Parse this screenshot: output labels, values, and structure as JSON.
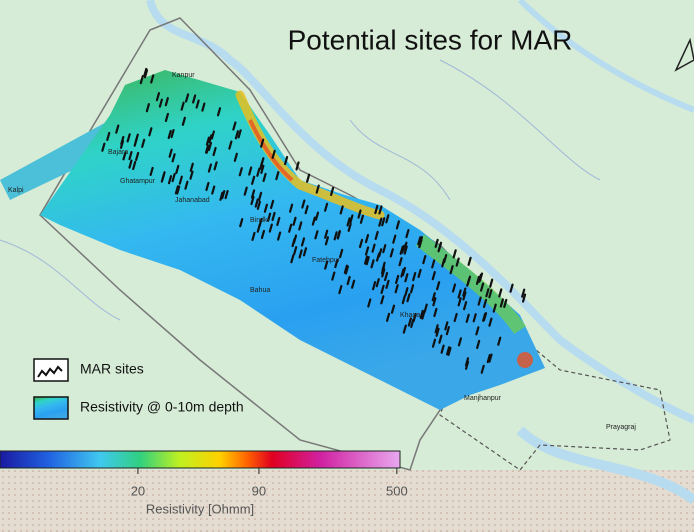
{
  "title": "Potential sites for MAR",
  "places": [
    "Kanpur",
    "Bajara",
    "Ghatampur",
    "Kalpi",
    "Jahanabad",
    "Bindki",
    "Fatehpur",
    "Bahua",
    "Khaga",
    "Manjhanpur",
    "Prayagraj"
  ],
  "legend": {
    "sites": "MAR sites",
    "resistivity": "Resistivity @ 0-10m depth"
  },
  "colorbar": {
    "label": "Resistivity [Ohmm]",
    "scale": "log",
    "lim": [
      3.6,
      520
    ],
    "ticks": [
      20,
      90,
      500
    ]
  }
}
